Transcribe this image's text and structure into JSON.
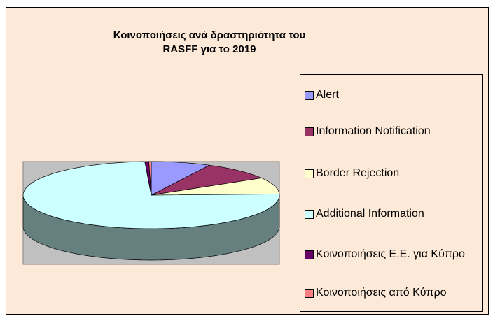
{
  "chart_data": {
    "type": "pie3d",
    "title": "Κοινοποιήσεις ανά δραστηριότητα του RASFF για το 2019",
    "categories": [
      "Alert",
      "Information Notification",
      "Border Rejection",
      "Additional Information",
      "Κοινοποιήσεις Ε.Ε. για Κύπρο",
      "Κοινοποιήσεις από Κύπρο"
    ],
    "values": [
      7.5,
      9,
      8,
      74.7,
      0.5,
      0.3
    ],
    "colors": [
      "#9999ff",
      "#993366",
      "#ffffcc",
      "#ccffff",
      "#660066",
      "#ff8080"
    ],
    "legend": "right"
  }
}
